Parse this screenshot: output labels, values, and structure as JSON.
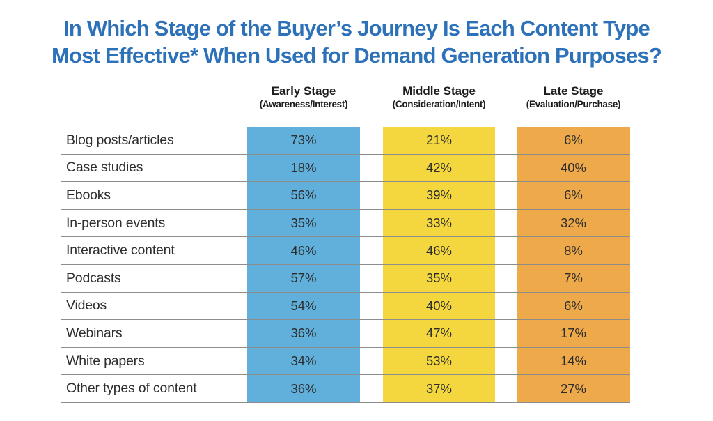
{
  "title": {
    "line1": "In Which Stage of the Buyer’s Journey Is Each Content Type",
    "line2": "Most Effective* When Used for Demand Generation Purposes?"
  },
  "colors": {
    "title": "#2d72b9",
    "early": "#61b0db",
    "middle": "#f4d73f",
    "late": "#eda94a",
    "divider": "#8c8c8c"
  },
  "table": {
    "headers": [
      {
        "main": "Early Stage",
        "sub": "(Awareness/Interest)"
      },
      {
        "main": "Middle Stage",
        "sub": "(Consideration/Intent)"
      },
      {
        "main": "Late Stage",
        "sub": "(Evaluation/Purchase)"
      }
    ],
    "rows": [
      {
        "label": "Blog posts/articles",
        "values": [
          "73%",
          "21%",
          "6%"
        ]
      },
      {
        "label": "Case studies",
        "values": [
          "18%",
          "42%",
          "40%"
        ]
      },
      {
        "label": "Ebooks",
        "values": [
          "56%",
          "39%",
          "6%"
        ]
      },
      {
        "label": "In-person events",
        "values": [
          "35%",
          "33%",
          "32%"
        ]
      },
      {
        "label": "Interactive content",
        "values": [
          "46%",
          "46%",
          "8%"
        ]
      },
      {
        "label": "Podcasts",
        "values": [
          "57%",
          "35%",
          "7%"
        ]
      },
      {
        "label": "Videos",
        "values": [
          "54%",
          "40%",
          "6%"
        ]
      },
      {
        "label": "Webinars",
        "values": [
          "36%",
          "47%",
          "17%"
        ]
      },
      {
        "label": "White papers",
        "values": [
          "34%",
          "53%",
          "14%"
        ]
      },
      {
        "label": "Other types of content",
        "values": [
          "36%",
          "37%",
          "27%"
        ]
      }
    ]
  },
  "chart_data": {
    "type": "table",
    "title": "In Which Stage of the Buyer’s Journey Is Each Content Type Most Effective* When Used for Demand Generation Purposes?",
    "unit": "%",
    "categories": [
      "Blog posts/articles",
      "Case studies",
      "Ebooks",
      "In-person events",
      "Interactive content",
      "Podcasts",
      "Videos",
      "Webinars",
      "White papers",
      "Other types of content"
    ],
    "series": [
      {
        "name": "Early Stage (Awareness/Interest)",
        "values": [
          73,
          18,
          56,
          35,
          46,
          57,
          54,
          36,
          34,
          36
        ]
      },
      {
        "name": "Middle Stage (Consideration/Intent)",
        "values": [
          21,
          42,
          39,
          33,
          46,
          35,
          40,
          47,
          53,
          37
        ]
      },
      {
        "name": "Late Stage (Evaluation/Purchase)",
        "values": [
          6,
          40,
          6,
          32,
          8,
          7,
          6,
          17,
          14,
          27
        ]
      }
    ],
    "layout_hints": {
      "style": "heatmap-like table with one solid color band per stage column",
      "column_colors": [
        "#61b0db",
        "#f4d73f",
        "#eda94a"
      ],
      "grid": "horizontal row dividers only"
    }
  }
}
